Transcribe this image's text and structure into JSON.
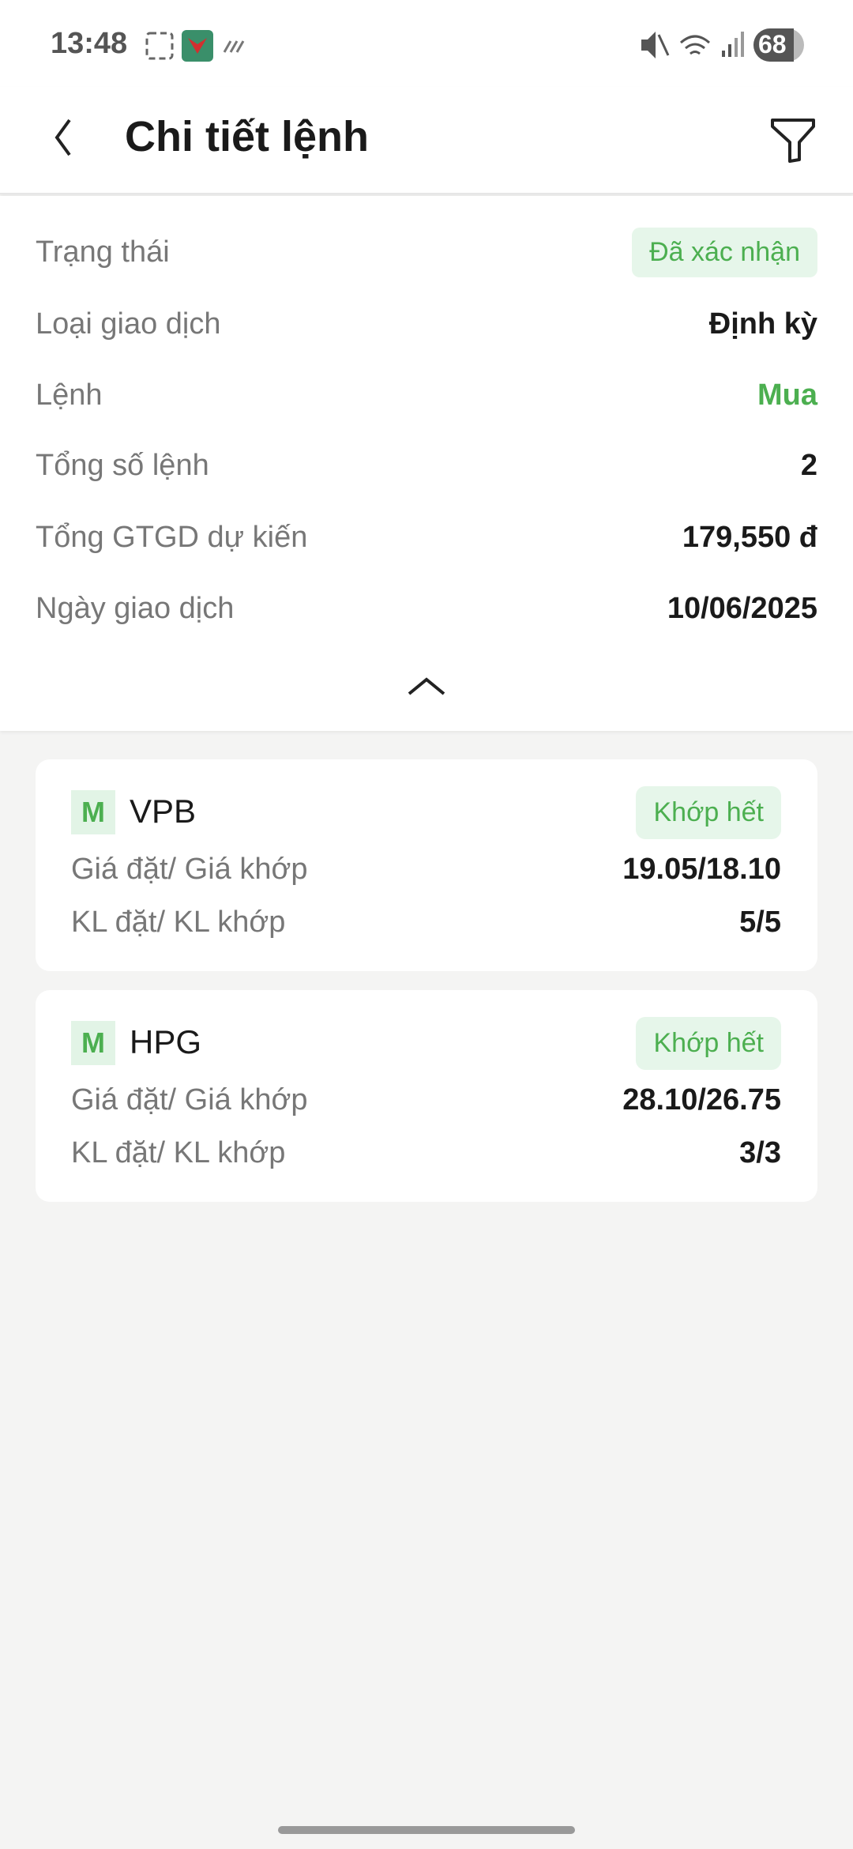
{
  "status_bar": {
    "time": "13:48",
    "battery": "68"
  },
  "header": {
    "title": "Chi tiết lệnh"
  },
  "details": [
    {
      "label": "Trạng thái",
      "value": "Đã xác nhận",
      "style": "badge"
    },
    {
      "label": "Loại giao dịch",
      "value": "Định kỳ"
    },
    {
      "label": "Lệnh",
      "value": "Mua",
      "style": "green"
    },
    {
      "label": "Tổng số lệnh",
      "value": "2"
    },
    {
      "label": "Tổng GTGD dự kiến",
      "value": "179,550 đ"
    },
    {
      "label": "Ngày giao dịch",
      "value": "10/06/2025"
    }
  ],
  "orders": [
    {
      "side": "M",
      "symbol": "VPB",
      "status": "Khớp hết",
      "price_label": "Giá đặt/ Giá khớp",
      "price": "19.05/18.10",
      "qty_label": "KL đặt/ KL khớp",
      "qty": "5/5"
    },
    {
      "side": "M",
      "symbol": "HPG",
      "status": "Khớp hết",
      "price_label": "Giá đặt/ Giá khớp",
      "price": "28.10/26.75",
      "qty_label": "KL đặt/ KL khớp",
      "qty": "3/3"
    }
  ],
  "colors": {
    "accent": "#4caf50",
    "badge_bg": "#e6f6ea",
    "background": "#f4f4f3"
  }
}
